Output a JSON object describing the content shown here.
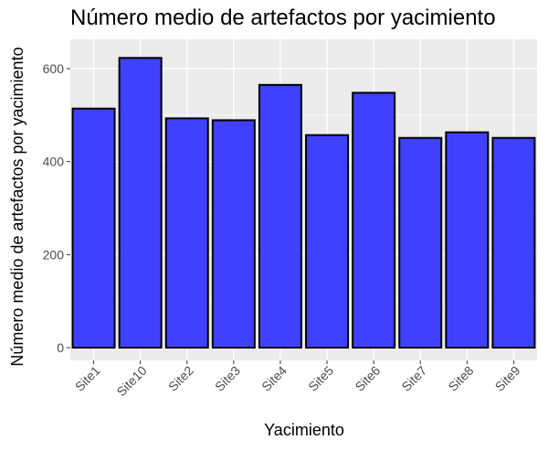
{
  "chart_data": {
    "type": "bar",
    "title": "Número medio de artefactos por yacimiento",
    "xlabel": "Yacimiento",
    "ylabel": "Número medio de artefactos por yacimiento",
    "categories": [
      "Site1",
      "Site10",
      "Site2",
      "Site3",
      "Site4",
      "Site5",
      "Site6",
      "Site7",
      "Site8",
      "Site9"
    ],
    "values": [
      514,
      623,
      493,
      489,
      565,
      457,
      548,
      451,
      463,
      451
    ],
    "ylim": [
      0,
      650
    ],
    "yticks": [
      0,
      200,
      400,
      600
    ],
    "grid": true,
    "colors": {
      "bar_fill": "#4040FF",
      "bar_stroke": "#000000",
      "panel": "#EBEBEB",
      "grid": "#FFFFFF",
      "tick_text": "#4D4D4D"
    }
  }
}
